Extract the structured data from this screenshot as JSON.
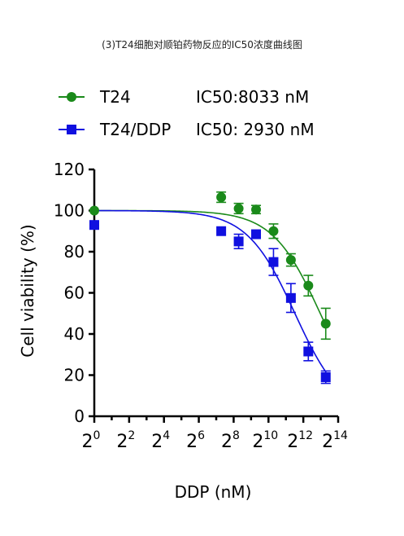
{
  "caption": "(3)T24细胞对顺铂药物反应的IC50浓度曲线图",
  "chart_data": {
    "type": "scatter",
    "xlabel": "DDP (nM)",
    "ylabel": "Cell viability (%)",
    "x_scale": "log2",
    "xlim_exp": [
      0,
      14
    ],
    "x_tick_exponents": [
      "0",
      "2",
      "4",
      "6",
      "8",
      "10",
      "12",
      "14"
    ],
    "ylim": [
      0,
      120
    ],
    "y_ticks": [
      "0",
      "20",
      "40",
      "60",
      "80",
      "100",
      "120"
    ],
    "legend_position": "top-left",
    "grid": false,
    "series": [
      {
        "name": "T24",
        "ic50_text": "IC50:8033 nM",
        "color": "#1a8a1a",
        "marker": "circle",
        "ic50_nM": 8033,
        "points": [
          {
            "x": 1,
            "y": 100,
            "err": 0
          },
          {
            "x": 156,
            "y": 106.5,
            "err": 2.5
          },
          {
            "x": 312.5,
            "y": 101,
            "err": 2.5
          },
          {
            "x": 625,
            "y": 100.5,
            "err": 2
          },
          {
            "x": 1250,
            "y": 90,
            "err": 3.5
          },
          {
            "x": 2500,
            "y": 76,
            "err": 3
          },
          {
            "x": 5000,
            "y": 63.5,
            "err": 5
          },
          {
            "x": 10000,
            "y": 45,
            "err": 7.5
          }
        ]
      },
      {
        "name": "T24/DDP",
        "ic50_text": "IC50: 2930 nM",
        "color": "#1010e0",
        "marker": "square",
        "ic50_nM": 2930,
        "points": [
          {
            "x": 1,
            "y": 93,
            "err": 0
          },
          {
            "x": 156,
            "y": 90,
            "err": 0
          },
          {
            "x": 312.5,
            "y": 85,
            "err": 3.5
          },
          {
            "x": 625,
            "y": 88.5,
            "err": 0
          },
          {
            "x": 1250,
            "y": 75,
            "err": 6.5
          },
          {
            "x": 2500,
            "y": 57.5,
            "err": 7
          },
          {
            "x": 5000,
            "y": 31.5,
            "err": 4.5
          },
          {
            "x": 10000,
            "y": 19,
            "err": 3
          }
        ]
      }
    ]
  }
}
